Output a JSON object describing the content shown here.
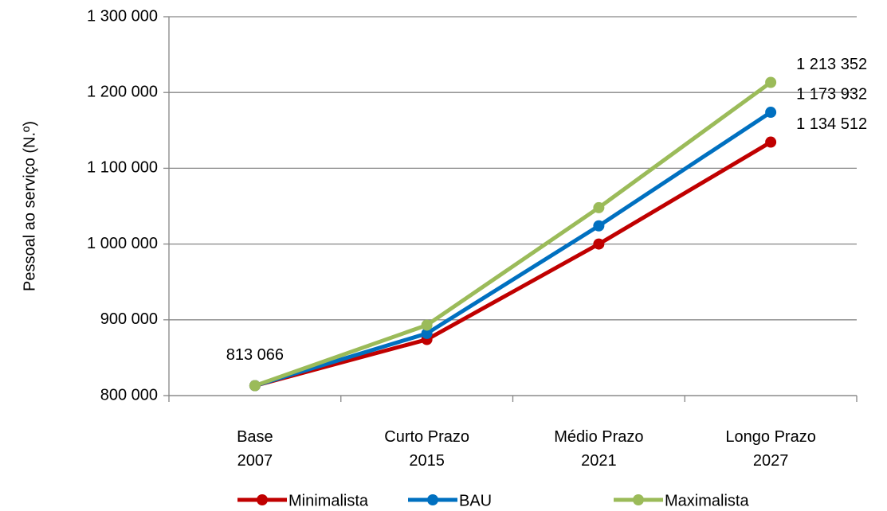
{
  "chart_data": {
    "type": "line",
    "y_label": "Pessoal ao serviço (N.º)",
    "categories": [
      "Base\n2007",
      "Curto Prazo\n2015",
      "Médio Prazo\n2021",
      "Longo Prazo\n2027"
    ],
    "series": [
      {
        "name": "Minimalista",
        "color": "#c00000",
        "values": [
          813066,
          874000,
          1000000,
          1134512
        ],
        "value_labels": [
          null,
          null,
          null,
          "1 134 512"
        ]
      },
      {
        "name": "BAU",
        "color": "#0070c0",
        "values": [
          813066,
          882000,
          1024000,
          1173932
        ],
        "value_labels": [
          null,
          null,
          null,
          "1 173 932"
        ]
      },
      {
        "name": "Maximalista",
        "color": "#9bbb59",
        "values": [
          813066,
          893000,
          1048000,
          1213352
        ],
        "value_labels": [
          "813 066",
          null,
          null,
          "1 213 352"
        ]
      }
    ],
    "ylim": [
      800000,
      1300000
    ],
    "yticks": [
      {
        "value": 800000,
        "label": "800 000"
      },
      {
        "value": 900000,
        "label": "900 000"
      },
      {
        "value": 1000000,
        "label": "1 000 000"
      },
      {
        "value": 1100000,
        "label": "1 100 000"
      },
      {
        "value": 1200000,
        "label": "1 200 000"
      },
      {
        "value": 1300000,
        "label": "1 300 000"
      }
    ],
    "grid": true,
    "legend": "bottom"
  }
}
